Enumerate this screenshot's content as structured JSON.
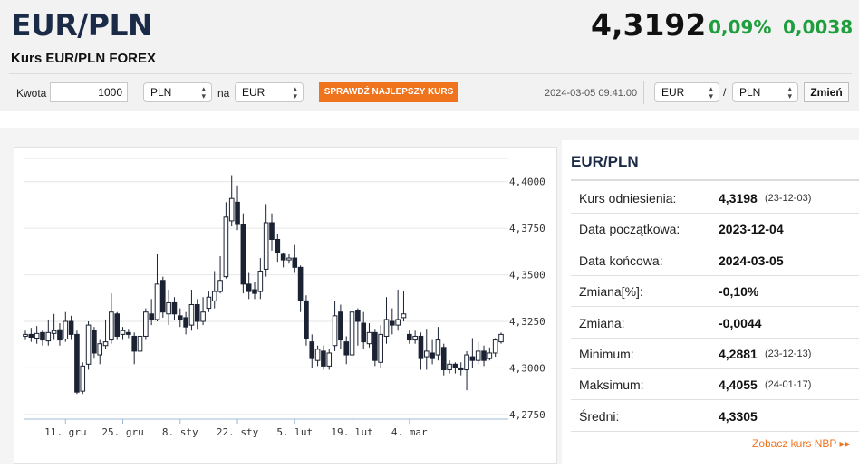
{
  "header": {
    "pair": "EUR/PLN",
    "subtitle": "Kurs EUR/PLN FOREX",
    "price": "4,3192",
    "change_pct": "0,09%",
    "change_abs": "0,0038",
    "change_color": "#1e9e3c"
  },
  "converter": {
    "amount_label": "Kwota",
    "amount_value": "1000",
    "from_currency": "PLN",
    "na_label": "na",
    "to_currency": "EUR",
    "best_rate_button": "SPRAWDŹ NAJLEPSZY KURS",
    "timestamp": "2024-03-05 09:41:00",
    "pair_base": "EUR",
    "slash": "/",
    "pair_quote": "PLN",
    "change_button": "Zmień",
    "accent_color": "#f0731e"
  },
  "chart_data": {
    "type": "candlestick",
    "title": "",
    "ylim": [
      4.2725,
      4.4125
    ],
    "y_ticks": [
      "4,2750",
      "4,3000",
      "4,3250",
      "4,3500",
      "4,3750",
      "4,4000"
    ],
    "x_ticks": [
      "11. gru",
      "25. gru",
      "8. sty",
      "22. sty",
      "5. lut",
      "19. lut",
      "4. mar"
    ],
    "grid": true,
    "candles": [
      [
        4.317,
        4.318,
        4.315,
        4.32
      ],
      [
        4.318,
        4.3165,
        4.314,
        4.3215
      ],
      [
        4.316,
        4.3185,
        4.313,
        4.3225
      ],
      [
        4.319,
        4.315,
        4.312,
        4.3205
      ],
      [
        4.3145,
        4.319,
        4.312,
        4.326
      ],
      [
        4.3185,
        4.32,
        4.315,
        4.329
      ],
      [
        4.3205,
        4.315,
        4.312,
        4.324
      ],
      [
        4.3155,
        4.325,
        4.314,
        4.33
      ],
      [
        4.325,
        4.318,
        4.315,
        4.328
      ],
      [
        4.318,
        4.287,
        4.286,
        4.32
      ],
      [
        4.2875,
        4.301,
        4.286,
        4.303
      ],
      [
        4.302,
        4.323,
        4.299,
        4.325
      ],
      [
        4.32,
        4.308,
        4.305,
        4.322
      ],
      [
        4.307,
        4.313,
        4.302,
        4.315
      ],
      [
        4.312,
        4.314,
        4.31,
        4.326
      ],
      [
        4.315,
        4.33,
        4.313,
        4.34
      ],
      [
        4.329,
        4.317,
        4.315,
        4.33
      ],
      [
        4.318,
        4.32,
        4.315,
        4.322
      ],
      [
        4.319,
        4.318,
        4.316,
        4.321
      ],
      [
        4.317,
        4.309,
        4.302,
        4.319
      ],
      [
        4.309,
        4.317,
        4.306,
        4.321
      ],
      [
        4.317,
        4.33,
        4.315,
        4.332
      ],
      [
        4.329,
        4.326,
        4.323,
        4.337
      ],
      [
        4.326,
        4.345,
        4.325,
        4.361
      ],
      [
        4.347,
        4.33,
        4.327,
        4.349
      ],
      [
        4.329,
        4.335,
        4.323,
        4.342
      ],
      [
        4.335,
        4.329,
        4.326,
        4.338
      ],
      [
        4.328,
        4.326,
        4.322,
        4.332
      ],
      [
        4.327,
        4.322,
        4.318,
        4.33
      ],
      [
        4.323,
        4.334,
        4.32,
        4.342
      ],
      [
        4.334,
        4.325,
        4.321,
        4.337
      ],
      [
        4.325,
        4.33,
        4.323,
        4.338
      ],
      [
        4.332,
        4.338,
        4.33,
        4.341
      ],
      [
        4.336,
        4.341,
        4.332,
        4.352
      ],
      [
        4.341,
        4.347,
        4.34,
        4.36
      ],
      [
        4.349,
        4.381,
        4.348,
        4.389
      ],
      [
        4.379,
        4.391,
        4.376,
        4.4035
      ],
      [
        4.389,
        4.377,
        4.374,
        4.398
      ],
      [
        4.377,
        4.345,
        4.34,
        4.383
      ],
      [
        4.345,
        4.341,
        4.337,
        4.351
      ],
      [
        4.342,
        4.34,
        4.337,
        4.346
      ],
      [
        4.341,
        4.352,
        4.337,
        4.359
      ],
      [
        4.353,
        4.378,
        4.349,
        4.388
      ],
      [
        4.378,
        4.369,
        4.363,
        4.383
      ],
      [
        4.369,
        4.362,
        4.357,
        4.372
      ],
      [
        4.361,
        4.358,
        4.354,
        4.362
      ],
      [
        4.358,
        4.359,
        4.356,
        4.361
      ],
      [
        4.359,
        4.354,
        4.351,
        4.366
      ],
      [
        4.354,
        4.336,
        4.33,
        4.355
      ],
      [
        4.336,
        4.316,
        4.312,
        4.339
      ],
      [
        4.314,
        4.305,
        4.3,
        4.318
      ],
      [
        4.304,
        4.31,
        4.301,
        4.312
      ],
      [
        4.309,
        4.301,
        4.299,
        4.312
      ],
      [
        4.301,
        4.308,
        4.299,
        4.31
      ],
      [
        4.312,
        4.328,
        4.309,
        4.336
      ],
      [
        4.33,
        4.315,
        4.31,
        4.334
      ],
      [
        4.314,
        4.307,
        4.302,
        4.317
      ],
      [
        4.307,
        4.33,
        4.305,
        4.334
      ],
      [
        4.331,
        4.325,
        4.312,
        4.332
      ],
      [
        4.324,
        4.314,
        4.31,
        4.33
      ],
      [
        4.313,
        4.319,
        4.311,
        4.324
      ],
      [
        4.319,
        4.304,
        4.301,
        4.321
      ],
      [
        4.303,
        4.318,
        4.3,
        4.323
      ],
      [
        4.317,
        4.326,
        4.313,
        4.338
      ],
      [
        4.325,
        4.323,
        4.318,
        4.332
      ],
      [
        4.323,
        4.326,
        4.32,
        4.342
      ],
      [
        4.327,
        4.329,
        4.325,
        4.341
      ],
      [
        4.318,
        4.315,
        4.313,
        4.32
      ],
      [
        4.315,
        4.317,
        4.313,
        4.32
      ],
      [
        4.317,
        4.305,
        4.299,
        4.319
      ],
      [
        4.306,
        4.309,
        4.299,
        4.321
      ],
      [
        4.308,
        4.305,
        4.302,
        4.315
      ],
      [
        4.307,
        4.315,
        4.304,
        4.322
      ],
      [
        4.311,
        4.299,
        4.296,
        4.313
      ],
      [
        4.299,
        4.302,
        4.297,
        4.304
      ],
      [
        4.302,
        4.3,
        4.297,
        4.303
      ],
      [
        4.3,
        4.299,
        4.296,
        4.303
      ],
      [
        4.299,
        4.307,
        4.288,
        4.309
      ],
      [
        4.306,
        4.304,
        4.3,
        4.316
      ],
      [
        4.304,
        4.309,
        4.302,
        4.314
      ],
      [
        4.309,
        4.304,
        4.301,
        4.312
      ],
      [
        4.305,
        4.308,
        4.304,
        4.311
      ],
      [
        4.308,
        4.315,
        4.306,
        4.316
      ],
      [
        4.314,
        4.318,
        4.313,
        4.319
      ]
    ]
  },
  "stats": {
    "title": "EUR/PLN",
    "rows": [
      {
        "label": "Kurs odniesienia:",
        "value": "4,3198",
        "date": "(23-12-03)"
      },
      {
        "label": "Data początkowa:",
        "value": "2023-12-04",
        "date": ""
      },
      {
        "label": "Data końcowa:",
        "value": "2024-03-05",
        "date": ""
      },
      {
        "label": "Zmiana[%]:",
        "value": "-0,10%",
        "date": ""
      },
      {
        "label": "Zmiana:",
        "value": "-0,0044",
        "date": ""
      },
      {
        "label": "Minimum:",
        "value": "4,2881",
        "date": "(23-12-13)"
      },
      {
        "label": "Maksimum:",
        "value": "4,4055",
        "date": "(24-01-17)"
      },
      {
        "label": "Średni:",
        "value": "4,3305",
        "date": ""
      }
    ],
    "nbp_link": "Zobacz kurs NBP ▸▸"
  }
}
